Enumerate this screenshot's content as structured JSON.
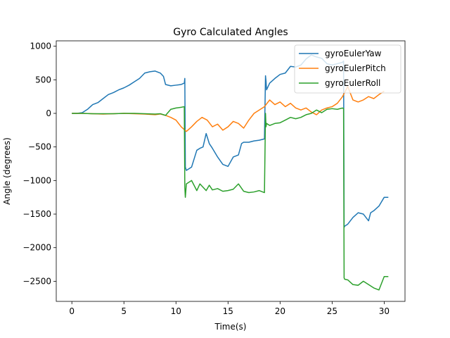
{
  "chart_data": {
    "type": "line",
    "title": "Gyro Calculated Angles",
    "xlabel": "Time(s)",
    "ylabel": "Angle (degrees)",
    "xlim": [
      -1.5,
      32
    ],
    "ylim": [
      -2800,
      1080
    ],
    "xticks": [
      0,
      5,
      10,
      15,
      20,
      25,
      30
    ],
    "yticks": [
      1000,
      500,
      0,
      -500,
      -1000,
      -1500,
      -2000,
      -2500
    ],
    "xtick_labels": [
      "0",
      "5",
      "10",
      "15",
      "20",
      "25",
      "30"
    ],
    "ytick_labels": [
      "1000",
      "500",
      "0",
      "−500",
      "−1000",
      "−1500",
      "−2000",
      "−2500"
    ],
    "grid": false,
    "legend_position": "top-right",
    "series": [
      {
        "name": "gyroEulerYaw",
        "color": "#1f77b4",
        "x": [
          0,
          0.5,
          1,
          1.5,
          2,
          2.5,
          3,
          3.5,
          4,
          4.5,
          5,
          5.5,
          6,
          6.5,
          7,
          7.5,
          8,
          8.5,
          8.8,
          9,
          9.5,
          10,
          10.5,
          10.8,
          10.85,
          10.9,
          11,
          11.5,
          12,
          12.3,
          12.6,
          12.9,
          13.2,
          13.5,
          14,
          14.5,
          15,
          15.5,
          16,
          16.3,
          16.5,
          17,
          17.5,
          18,
          18.5,
          18.6,
          18.65,
          18.7,
          19,
          19.5,
          20,
          20.5,
          21,
          21.5,
          22,
          22.5,
          23,
          23.5,
          24,
          24.5,
          25,
          25.5,
          26,
          26.1,
          26.15,
          26.2,
          26.5,
          27,
          27.5,
          28,
          28.5,
          28.7,
          29,
          29.5,
          30,
          30.4
        ],
        "y": [
          0,
          0,
          10,
          60,
          130,
          160,
          220,
          280,
          310,
          350,
          380,
          420,
          470,
          520,
          600,
          620,
          630,
          600,
          550,
          430,
          410,
          420,
          430,
          450,
          520,
          -800,
          -850,
          -800,
          -550,
          -520,
          -500,
          -300,
          -450,
          -520,
          -650,
          -760,
          -790,
          -650,
          -620,
          -450,
          -430,
          -430,
          -410,
          -400,
          -380,
          560,
          480,
          350,
          450,
          520,
          580,
          600,
          700,
          690,
          720,
          810,
          870,
          840,
          820,
          740,
          720,
          740,
          760,
          780,
          -1700,
          -1680,
          -1650,
          -1550,
          -1480,
          -1500,
          -1600,
          -1480,
          -1450,
          -1380,
          -1250,
          -1250
        ]
      },
      {
        "name": "gyroEulerPitch",
        "color": "#ff7f0e",
        "x": [
          0,
          1,
          2,
          3,
          4,
          5,
          6,
          7,
          8,
          8.5,
          9,
          9.5,
          10,
          10.5,
          11,
          11.5,
          12,
          12.5,
          13,
          13.5,
          14,
          14.5,
          15,
          15.5,
          16,
          16.5,
          17,
          17.5,
          18,
          18.5,
          19,
          19.5,
          20,
          20.5,
          21,
          21.5,
          22,
          22.5,
          23,
          23.5,
          24,
          24.5,
          25,
          25.5,
          26,
          26.5,
          27,
          27.5,
          28,
          28.5,
          29,
          29.5,
          30
        ],
        "y": [
          0,
          0,
          -5,
          -10,
          -5,
          0,
          -5,
          -10,
          -20,
          -10,
          -30,
          -60,
          -100,
          -200,
          -270,
          -200,
          -120,
          -60,
          -100,
          -200,
          -160,
          -250,
          -200,
          -120,
          -150,
          -220,
          -100,
          0,
          50,
          100,
          200,
          130,
          170,
          100,
          150,
          80,
          50,
          80,
          20,
          -20,
          50,
          80,
          100,
          150,
          250,
          400,
          200,
          170,
          200,
          250,
          220,
          280,
          330
        ]
      },
      {
        "name": "gyroEulerRoll",
        "color": "#2ca02c",
        "x": [
          0,
          1,
          2,
          3,
          4,
          5,
          6,
          7,
          8,
          8.5,
          9,
          9.5,
          10,
          10.5,
          10.8,
          10.85,
          10.9,
          11,
          11.5,
          12,
          12.3,
          12.6,
          12.9,
          13.2,
          13.5,
          14,
          14.5,
          15,
          15.5,
          16,
          16.5,
          17,
          17.5,
          18,
          18.5,
          18.6,
          18.65,
          18.7,
          19,
          19.5,
          20,
          20.5,
          21,
          21.5,
          22,
          22.5,
          23,
          23.5,
          24,
          24.5,
          25,
          25.5,
          26,
          26.1,
          26.15,
          26.2,
          26.5,
          27,
          27.5,
          28,
          28.5,
          29,
          29.5,
          30,
          30.4
        ],
        "y": [
          0,
          0,
          -5,
          -5,
          -5,
          0,
          0,
          -5,
          -10,
          -5,
          -30,
          60,
          80,
          90,
          100,
          -1100,
          -1250,
          -1050,
          -1000,
          -1150,
          -1050,
          -1100,
          -1150,
          -1070,
          -1140,
          -1120,
          -1160,
          -1150,
          -1130,
          -1050,
          -1160,
          -1180,
          -1170,
          -1150,
          -1180,
          0,
          -200,
          -150,
          -180,
          -150,
          -140,
          -100,
          -60,
          -80,
          -60,
          -20,
          0,
          50,
          10,
          60,
          70,
          60,
          80,
          70,
          -2450,
          -2470,
          -2480,
          -2550,
          -2560,
          -2500,
          -2550,
          -2600,
          -2630,
          -2430,
          -2430
        ]
      }
    ]
  }
}
